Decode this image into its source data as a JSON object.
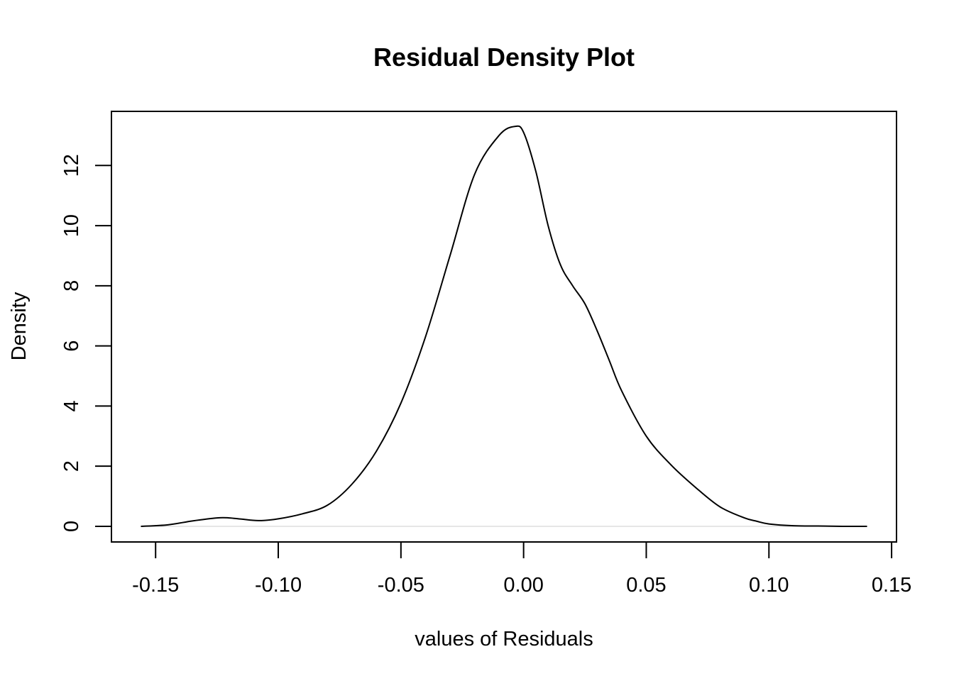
{
  "chart_data": {
    "type": "line",
    "title": "Residual Density Plot",
    "xlabel": "values of Residuals",
    "ylabel": "Density",
    "xlim": [
      -0.168,
      0.152
    ],
    "ylim": [
      -0.52,
      13.8
    ],
    "grid": false,
    "legend": "none",
    "x_ticks": [
      -0.15,
      -0.1,
      -0.05,
      0.0,
      0.05,
      0.1,
      0.15
    ],
    "x_tick_labels": [
      "-0.15",
      "-0.10",
      "-0.05",
      "0.00",
      "0.05",
      "0.10",
      "0.15"
    ],
    "y_ticks": [
      0,
      2,
      4,
      6,
      8,
      10,
      12
    ],
    "y_tick_labels": [
      "0",
      "2",
      "4",
      "6",
      "8",
      "10",
      "12"
    ],
    "baseline": {
      "y": 0,
      "color": "#cccccc"
    },
    "line_color": "#000000",
    "series": [
      {
        "x": [
          -0.156,
          -0.145,
          -0.135,
          -0.125,
          -0.12,
          -0.115,
          -0.108,
          -0.1,
          -0.09,
          -0.08,
          -0.07,
          -0.06,
          -0.05,
          -0.04,
          -0.03,
          -0.02,
          -0.01,
          -0.0035,
          0.0,
          0.005,
          0.01,
          0.015,
          0.02,
          0.025,
          0.03,
          0.035,
          0.04,
          0.05,
          0.06,
          0.07,
          0.08,
          0.09,
          0.095,
          0.1,
          0.11,
          0.12,
          0.13,
          0.14
        ],
        "y": [
          0.0,
          0.05,
          0.18,
          0.28,
          0.28,
          0.24,
          0.19,
          0.25,
          0.42,
          0.7,
          1.4,
          2.5,
          4.1,
          6.3,
          9.0,
          11.7,
          13.0,
          13.3,
          13.1,
          11.8,
          10.0,
          8.7,
          8.0,
          7.4,
          6.5,
          5.5,
          4.5,
          3.0,
          2.05,
          1.3,
          0.65,
          0.28,
          0.17,
          0.08,
          0.02,
          0.01,
          0.0,
          0.0
        ]
      }
    ]
  }
}
